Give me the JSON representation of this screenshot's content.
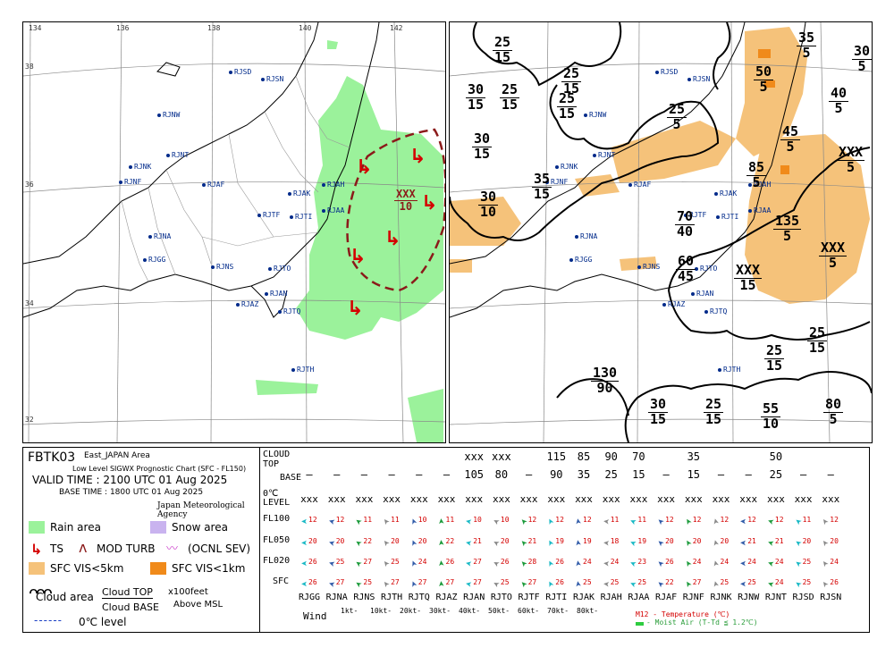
{
  "maps": {
    "lon_ticks": [
      "134",
      "136",
      "138",
      "140",
      "142"
    ],
    "lat_ticks": [
      "38",
      "36",
      "34",
      "32"
    ],
    "stations": [
      {
        "id": "RJSD"
      },
      {
        "id": "RJSN"
      },
      {
        "id": "RJNW"
      },
      {
        "id": "RJNT"
      },
      {
        "id": "RJNK"
      },
      {
        "id": "RJNF"
      },
      {
        "id": "RJAF"
      },
      {
        "id": "RJAK"
      },
      {
        "id": "RJAH"
      },
      {
        "id": "RJTF"
      },
      {
        "id": "RJTI"
      },
      {
        "id": "RJAA"
      },
      {
        "id": "RJNA"
      },
      {
        "id": "RJGG"
      },
      {
        "id": "RJNS"
      },
      {
        "id": "RJTO"
      },
      {
        "id": "RJAN"
      },
      {
        "id": "RJAZ"
      },
      {
        "id": "RJTQ"
      },
      {
        "id": "RJTH"
      }
    ],
    "left": {
      "ts_label": {
        "top": "XXX",
        "base": "10"
      }
    },
    "right": {
      "cloud_labels": [
        {
          "top": "25",
          "base": "15"
        },
        {
          "top": "30",
          "base": "15"
        },
        {
          "top": "25",
          "base": "15"
        },
        {
          "top": "25",
          "base": "15"
        },
        {
          "top": "25",
          "base": "15"
        },
        {
          "top": "30",
          "base": "15"
        },
        {
          "top": "25",
          "base": "5"
        },
        {
          "top": "35",
          "base": "15"
        },
        {
          "top": "30",
          "base": "10"
        },
        {
          "top": "35",
          "base": "5"
        },
        {
          "top": "30",
          "base": "5"
        },
        {
          "top": "50",
          "base": "5"
        },
        {
          "top": "40",
          "base": "5"
        },
        {
          "top": "45",
          "base": "5"
        },
        {
          "top": "85",
          "base": "5"
        },
        {
          "top": "XXX",
          "base": "5"
        },
        {
          "top": "70",
          "base": "40"
        },
        {
          "top": "135",
          "base": "5"
        },
        {
          "top": "60",
          "base": "45"
        },
        {
          "top": "XXX",
          "base": "15"
        },
        {
          "top": "XXX",
          "base": "5"
        },
        {
          "top": "25",
          "base": "15"
        },
        {
          "top": "25",
          "base": "15"
        },
        {
          "top": "130",
          "base": "90"
        },
        {
          "top": "30",
          "base": "15"
        },
        {
          "top": "25",
          "base": "15"
        },
        {
          "top": "55",
          "base": "10"
        },
        {
          "top": "80",
          "base": "5"
        }
      ]
    }
  },
  "legend": {
    "code": "FBTK03",
    "area": "East_JAPAN Area",
    "subtitle": "Low Level SIGWX Prognostic Chart (SFC - FL150)",
    "valid": "VALID TIME : 2100 UTC 01 Aug 2025",
    "base": "BASE TIME : 1800 UTC 01 Aug 2025",
    "agency": "Japan Meteorological Agency",
    "rain": "Rain area",
    "snow": "Snow area",
    "ts": "TS",
    "modturb": "MOD TURB",
    "ocnl": "(OCNL SEV)",
    "vis5": "SFC VIS<5km",
    "vis1": "SFC VIS<1km",
    "cloud_area": "Cloud area",
    "cloud_top": "Cloud TOP",
    "cloud_base": "Cloud BASE",
    "x100": "x100feet",
    "msl": "Above MSL",
    "zero": "0℃ level",
    "colors": {
      "rain": "#9bf29b",
      "snow": "#c9b3ef",
      "vis5": "#f5c27a",
      "vis1": "#f08a1a",
      "ts": "#d40000",
      "zero": "#1a3fc4"
    }
  },
  "table": {
    "cloud_label": "CLOUD",
    "top_label": "TOP",
    "base_label": "BASE",
    "zero_label": "0℃",
    "level_label": "LEVEL",
    "rows": [
      "FL100",
      "FL050",
      "FL020",
      "SFC"
    ],
    "wind_label": "Wind",
    "wind_scale": [
      "1kt-",
      "10kt-",
      "20kt-",
      "30kt-",
      "40kt-",
      "50kt-",
      "60kt-",
      "70kt-",
      "80kt-"
    ],
    "note_temp": "M12 - Temperature (℃)",
    "note_moist": "- Moist Air (T-Td ≦ 1.2℃)",
    "stations": [
      "RJGG",
      "RJNA",
      "RJNS",
      "RJTH",
      "RJTQ",
      "RJAZ",
      "RJAN",
      "RJTO",
      "RJTF",
      "RJTI",
      "RJAK",
      "RJAH",
      "RJAA",
      "RJAF",
      "RJNF",
      "RJNK",
      "RJNW",
      "RJNT",
      "RJSD",
      "RJSN"
    ],
    "tops": [
      "",
      "",
      "",
      "",
      "",
      "",
      "xxx",
      "xxx",
      "",
      "115",
      "85",
      "90",
      "70",
      "",
      "35",
      "",
      "",
      "50",
      "",
      ""
    ],
    "bases": [
      "–",
      "–",
      "–",
      "–",
      "–",
      "–",
      "105",
      "80",
      "–",
      "90",
      "35",
      "25",
      "15",
      "–",
      "15",
      "–",
      "–",
      "25",
      "–",
      "–"
    ],
    "zero": [
      "xxx",
      "xxx",
      "xxx",
      "xxx",
      "xxx",
      "xxx",
      "xxx",
      "xxx",
      "xxx",
      "xxx",
      "xxx",
      "xxx",
      "xxx",
      "xxx",
      "xxx",
      "xxx",
      "xxx",
      "xxx",
      "xxx",
      "xxx"
    ],
    "temps": {
      "FL100": [
        "12",
        "12",
        "11",
        "11",
        "10",
        "11",
        "10",
        "10",
        "12",
        "12",
        "12",
        "11",
        "11",
        "12",
        "12",
        "12",
        "12",
        "12",
        "11",
        "12"
      ],
      "FL050": [
        "20",
        "20",
        "22",
        "20",
        "20",
        "22",
        "21",
        "20",
        "21",
        "19",
        "19",
        "18",
        "19",
        "20",
        "20",
        "20",
        "21",
        "21",
        "20",
        "20"
      ],
      "FL020": [
        "26",
        "25",
        "27",
        "25",
        "24",
        "26",
        "27",
        "26",
        "28",
        "26",
        "24",
        "24",
        "23",
        "26",
        "24",
        "24",
        "24",
        "24",
        "25",
        "24"
      ],
      "SFC": [
        "26",
        "27",
        "25",
        "27",
        "27",
        "27",
        "27",
        "25",
        "27",
        "26",
        "25",
        "25",
        "25",
        "22",
        "27",
        "25",
        "25",
        "24",
        "25",
        "26"
      ]
    }
  }
}
